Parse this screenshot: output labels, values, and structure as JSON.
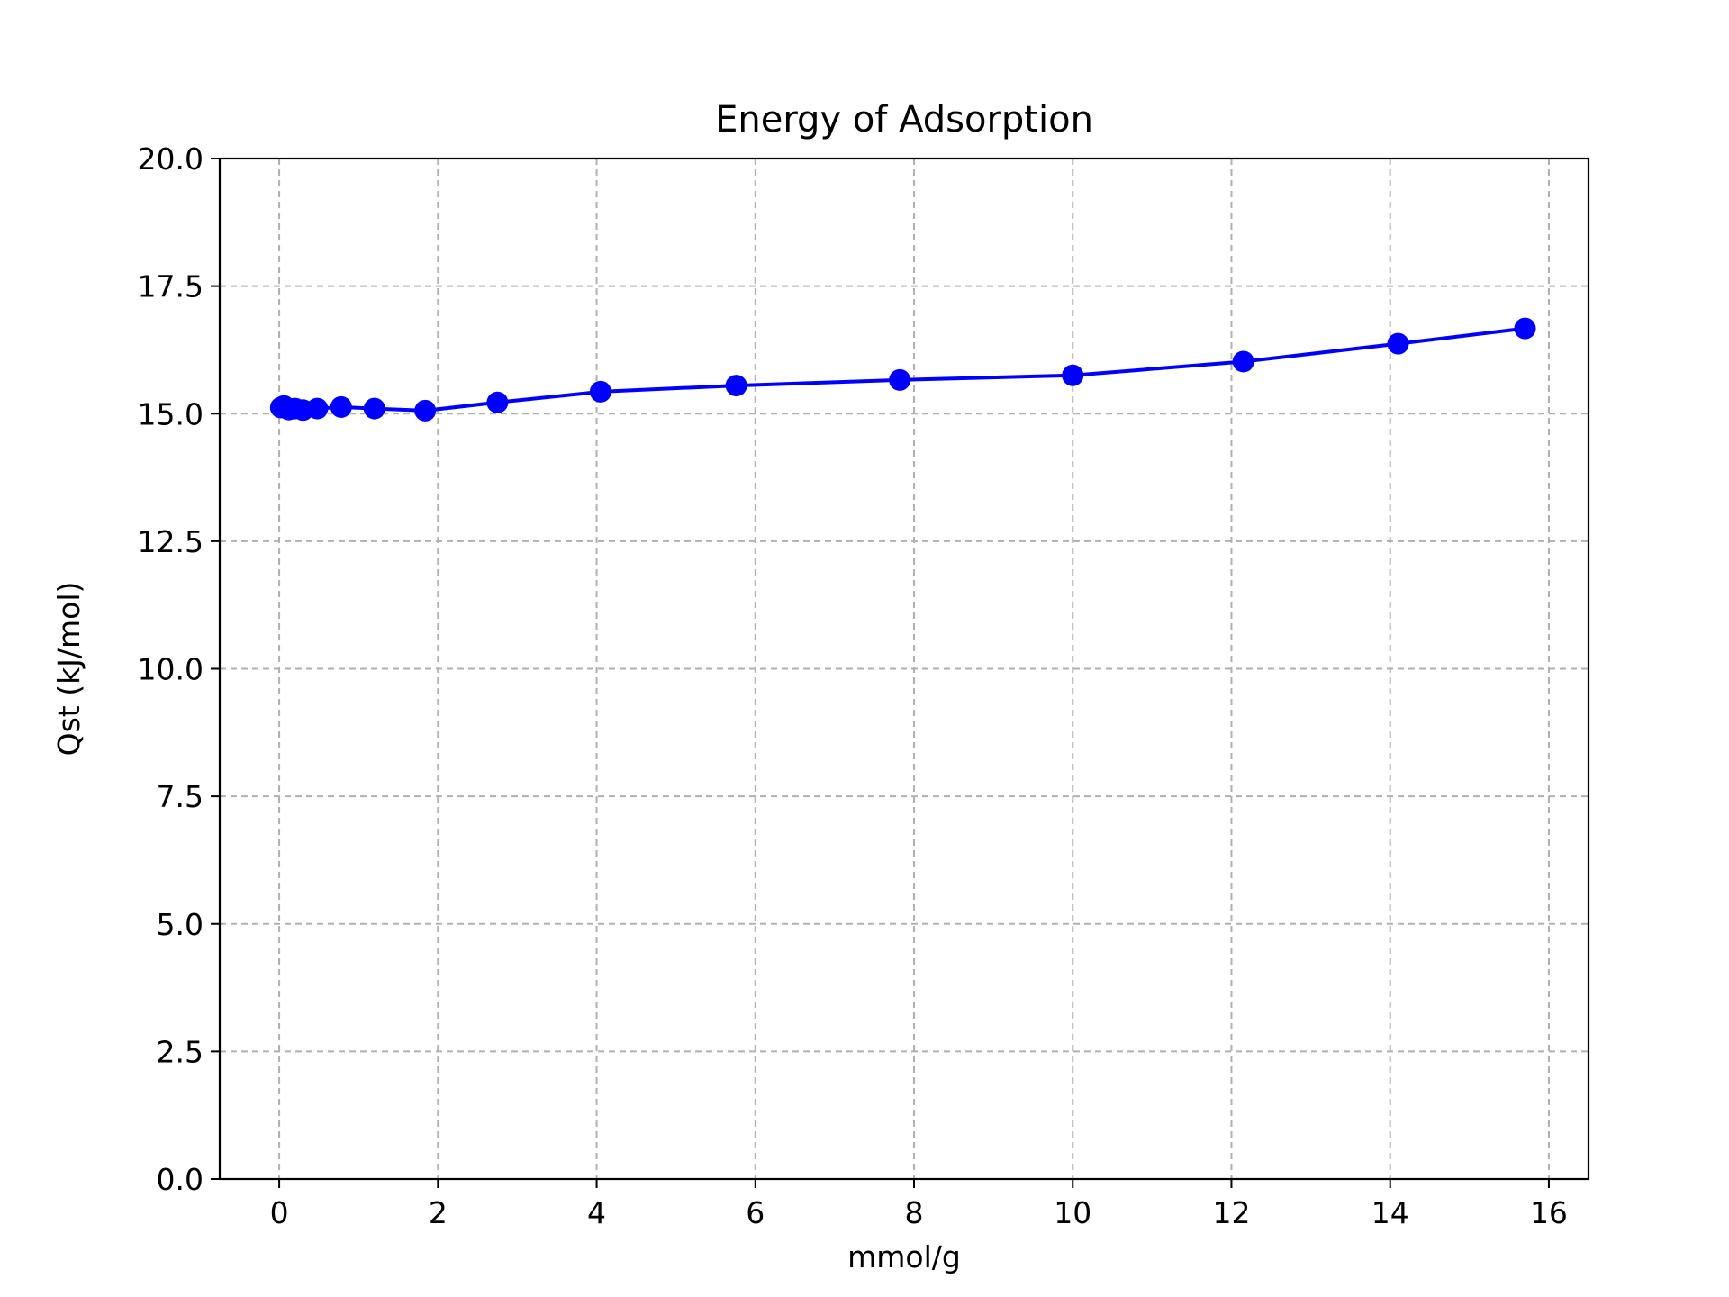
{
  "chart_data": {
    "type": "line",
    "title": "Energy of Adsorption",
    "xlabel": "mmol/g",
    "ylabel": "Qst (kJ/mol)",
    "xlim": [
      -0.75,
      16.5
    ],
    "ylim": [
      0,
      20
    ],
    "xticks": [
      0,
      2,
      4,
      6,
      8,
      10,
      12,
      14,
      16
    ],
    "yticks": [
      0.0,
      2.5,
      5.0,
      7.5,
      10.0,
      12.5,
      15.0,
      17.5,
      20.0
    ],
    "xtick_labels": [
      "0",
      "2",
      "4",
      "6",
      "8",
      "10",
      "12",
      "14",
      "16"
    ],
    "ytick_labels": [
      "0.0",
      "2.5",
      "5.0",
      "7.5",
      "10.0",
      "12.5",
      "15.0",
      "17.5",
      "20.0"
    ],
    "grid": true,
    "series": [
      {
        "color": "#0000ff",
        "marker": "circle",
        "x": [
          0.02,
          0.06,
          0.12,
          0.2,
          0.3,
          0.48,
          0.78,
          1.2,
          1.84,
          2.75,
          4.05,
          5.76,
          7.82,
          10.0,
          12.15,
          14.1,
          15.7
        ],
        "y": [
          15.12,
          15.15,
          15.08,
          15.1,
          15.07,
          15.1,
          15.13,
          15.1,
          15.06,
          15.22,
          15.43,
          15.55,
          15.66,
          15.75,
          16.02,
          16.37,
          16.67
        ]
      }
    ]
  }
}
